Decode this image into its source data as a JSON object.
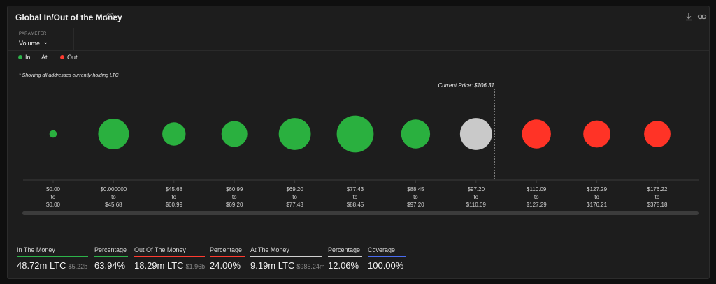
{
  "title": "Global In/Out of the Money",
  "help_glyph": "?",
  "icons": {
    "help": "question-icon",
    "download": "download-icon",
    "link": "link-icon"
  },
  "parameter": {
    "label": "PARAMETER",
    "value": "Volume",
    "chevron": "⌄"
  },
  "legend": [
    {
      "label": "In",
      "color": "#2db34a"
    },
    {
      "label": "At",
      "color": "#c8c8c8"
    },
    {
      "label": "Out",
      "color": "#ff3b30"
    }
  ],
  "note": "* Showing all addresses currently holding LTC",
  "current_price_label": "Current Price: $106.31",
  "colors": {
    "in": "#2ab03f",
    "at": "#c9c9c9",
    "out": "#ff3326"
  },
  "chart_data": {
    "type": "bubble",
    "current_price": 106.31,
    "buckets": [
      {
        "from": "$0.00",
        "to_word": "to",
        "to": "$0.00",
        "status": "in",
        "size": 0.12
      },
      {
        "from": "$0.000000",
        "to_word": "to",
        "to": "$45.68",
        "status": "in",
        "size": 0.5
      },
      {
        "from": "$45.68",
        "to_word": "to",
        "to": "$60.99",
        "status": "in",
        "size": 0.38
      },
      {
        "from": "$60.99",
        "to_word": "to",
        "to": "$69.20",
        "status": "in",
        "size": 0.42
      },
      {
        "from": "$69.20",
        "to_word": "to",
        "to": "$77.43",
        "status": "in",
        "size": 0.52
      },
      {
        "from": "$77.43",
        "to_word": "to",
        "to": "$88.45",
        "status": "in",
        "size": 0.6
      },
      {
        "from": "$88.45",
        "to_word": "to",
        "to": "$97.20",
        "status": "in",
        "size": 0.47
      },
      {
        "from": "$97.20",
        "to_word": "to",
        "to": "$110.09",
        "status": "at",
        "size": 0.52
      },
      {
        "from": "$110.09",
        "to_word": "to",
        "to": "$127.29",
        "status": "out",
        "size": 0.47
      },
      {
        "from": "$127.29",
        "to_word": "to",
        "to": "$176.21",
        "status": "out",
        "size": 0.44
      },
      {
        "from": "$176.22",
        "to_word": "to",
        "to": "$375.18",
        "status": "out",
        "size": 0.43
      }
    ]
  },
  "stats": [
    {
      "label": "In The Money",
      "value": "48.72m LTC",
      "sub": "$5.22b",
      "color": "#2db34a"
    },
    {
      "label": "Percentage",
      "value": "63.94%",
      "sub": "",
      "color": "#2db34a"
    },
    {
      "label": "Out Of The Money",
      "value": "18.29m LTC",
      "sub": "$1.96b",
      "color": "#ff3b30"
    },
    {
      "label": "Percentage",
      "value": "24.00%",
      "sub": "",
      "color": "#ff3b30"
    },
    {
      "label": "At The Money",
      "value": "9.19m LTC",
      "sub": "$985.24m",
      "color": "#d0d0d0"
    },
    {
      "label": "Percentage",
      "value": "12.06%",
      "sub": "",
      "color": "#d0d0d0"
    },
    {
      "label": "Coverage",
      "value": "100.00%",
      "sub": "",
      "color": "#4a6cf0"
    }
  ]
}
